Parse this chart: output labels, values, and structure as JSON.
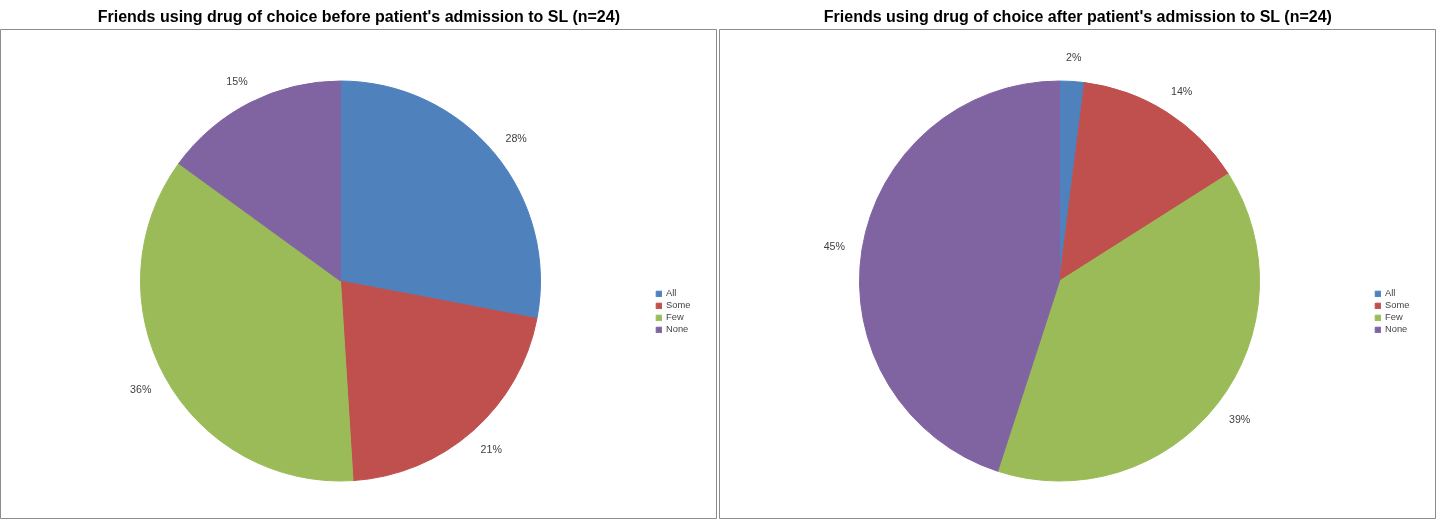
{
  "chart_data": [
    {
      "type": "pie",
      "title": "Friends using drug of choice before patient's admission to SL (n=24)",
      "categories": [
        "All",
        "Some",
        "Few",
        "None"
      ],
      "values": [
        28,
        21,
        36,
        15
      ],
      "value_labels": [
        "28%",
        "21%",
        "36%",
        "15%"
      ],
      "colors": [
        "#4f81bd",
        "#c0504d",
        "#9bbb59",
        "#8064a2"
      ],
      "legend": "right"
    },
    {
      "type": "pie",
      "title": "Friends using drug of choice after patient's admission to SL (n=24)",
      "categories": [
        "All",
        "Some",
        "Few",
        "None"
      ],
      "values": [
        2,
        14,
        39,
        45
      ],
      "value_labels": [
        "2%",
        "14%",
        "39%",
        "45%"
      ],
      "colors": [
        "#4f81bd",
        "#c0504d",
        "#9bbb59",
        "#8064a2"
      ],
      "legend": "right"
    }
  ]
}
